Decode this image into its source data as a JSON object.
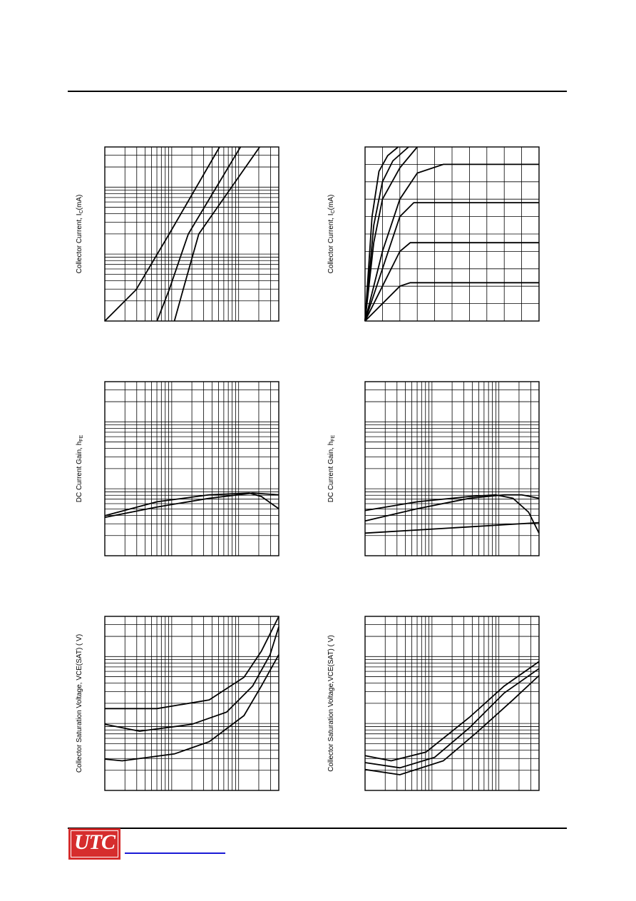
{
  "colors": {
    "logo_bg": "#d62d2d",
    "link": "#1a1ad6",
    "curve": "#000000",
    "grid": "#000000"
  },
  "logo": {
    "text": "UTC"
  },
  "chart_data": [
    {
      "type": "line",
      "ylabel": "Collector Current, I",
      "ylabel_sub": "C",
      "ylabel_tail": "(mA)",
      "grid": true,
      "series": [
        {
          "x": [
            0.0,
            0.18,
            0.37,
            0.66
          ],
          "y": [
            0.0,
            0.18,
            0.5,
            1.0
          ]
        },
        {
          "x": [
            0.3,
            0.37,
            0.48,
            0.78
          ],
          "y": [
            0.0,
            0.18,
            0.5,
            1.0
          ]
        },
        {
          "x": [
            0.4,
            0.45,
            0.54,
            0.89
          ],
          "y": [
            0.0,
            0.18,
            0.5,
            1.0
          ]
        }
      ]
    },
    {
      "type": "line",
      "ylabel": "Collector Current, I",
      "ylabel_sub": "C",
      "ylabel_tail": "(mA)",
      "grid": true,
      "series": [
        {
          "x": [
            0,
            0.1,
            0.2,
            0.26,
            1.0
          ],
          "y": [
            0,
            0.1,
            0.2,
            0.22,
            0.22
          ]
        },
        {
          "x": [
            0,
            0.1,
            0.2,
            0.26,
            1.0
          ],
          "y": [
            0,
            0.2,
            0.4,
            0.45,
            0.45
          ]
        },
        {
          "x": [
            0,
            0.1,
            0.2,
            0.28,
            1.0
          ],
          "y": [
            0,
            0.3,
            0.6,
            0.68,
            0.68
          ]
        },
        {
          "x": [
            0,
            0.1,
            0.2,
            0.3,
            0.45,
            1.0
          ],
          "y": [
            0,
            0.4,
            0.7,
            0.85,
            0.9,
            0.9
          ]
        },
        {
          "x": [
            0,
            0.05,
            0.1,
            0.2,
            0.3
          ],
          "y": [
            0,
            0.45,
            0.7,
            0.88,
            1.0
          ]
        },
        {
          "x": [
            0,
            0.05,
            0.1,
            0.16,
            0.25
          ],
          "y": [
            0,
            0.55,
            0.8,
            0.92,
            1.0
          ]
        },
        {
          "x": [
            0,
            0.04,
            0.08,
            0.13,
            0.19
          ],
          "y": [
            0,
            0.6,
            0.86,
            0.95,
            1.0
          ]
        }
      ]
    },
    {
      "type": "line",
      "ylabel": "DC Current Gain, h",
      "ylabel_sub": "FE",
      "ylabel_tail": "",
      "grid": true,
      "series": [
        {
          "x": [
            0.0,
            0.3,
            0.6,
            0.85,
            1.0
          ],
          "y": [
            0.22,
            0.28,
            0.33,
            0.36,
            0.35
          ]
        },
        {
          "x": [
            0.0,
            0.3,
            0.6,
            0.83,
            0.9,
            1.0
          ],
          "y": [
            0.23,
            0.31,
            0.35,
            0.36,
            0.34,
            0.27
          ]
        }
      ]
    },
    {
      "type": "line",
      "ylabel": "DC Current Gain, h",
      "ylabel_sub": "FE",
      "ylabel_tail": "",
      "grid": true,
      "series": [
        {
          "x": [
            0.0,
            0.3,
            0.6,
            0.75,
            0.85,
            0.94,
            1.0
          ],
          "y": [
            0.26,
            0.31,
            0.34,
            0.35,
            0.33,
            0.25,
            0.13
          ]
        },
        {
          "x": [
            0.0,
            0.3,
            0.6,
            0.8,
            0.9,
            1.0
          ],
          "y": [
            0.2,
            0.27,
            0.33,
            0.35,
            0.35,
            0.33
          ]
        },
        {
          "x": [
            0.0,
            0.5,
            1.0
          ],
          "y": [
            0.13,
            0.16,
            0.19
          ]
        }
      ]
    },
    {
      "type": "line",
      "ylabel": "Collector  Saturation Voltage, VCE(SAT) ( V)",
      "ylabel_sub": "",
      "ylabel_tail": "",
      "grid": true,
      "series": [
        {
          "x": [
            0.0,
            0.3,
            0.6,
            0.8,
            0.9,
            1.0
          ],
          "y": [
            0.47,
            0.47,
            0.52,
            0.65,
            0.8,
            1.0
          ]
        },
        {
          "x": [
            0.0,
            0.2,
            0.5,
            0.7,
            0.85,
            0.95,
            1.0
          ],
          "y": [
            0.38,
            0.34,
            0.38,
            0.45,
            0.6,
            0.78,
            0.94
          ]
        },
        {
          "x": [
            0.0,
            0.1,
            0.4,
            0.6,
            0.8,
            0.9,
            1.0
          ],
          "y": [
            0.18,
            0.17,
            0.21,
            0.28,
            0.43,
            0.6,
            0.78
          ]
        }
      ]
    },
    {
      "type": "line",
      "ylabel": "Collector  Saturation Voltage,VCE(SAT) ( V)",
      "ylabel_sub": "",
      "ylabel_tail": "",
      "grid": true,
      "series": [
        {
          "x": [
            0.0,
            0.15,
            0.35,
            0.6,
            0.8,
            1.0
          ],
          "y": [
            0.2,
            0.17,
            0.22,
            0.42,
            0.6,
            0.74
          ]
        },
        {
          "x": [
            0.0,
            0.2,
            0.4,
            0.6,
            0.8,
            1.0
          ],
          "y": [
            0.16,
            0.13,
            0.19,
            0.36,
            0.56,
            0.7
          ]
        },
        {
          "x": [
            0.0,
            0.2,
            0.45,
            0.65,
            0.85,
            1.0
          ],
          "y": [
            0.12,
            0.09,
            0.17,
            0.34,
            0.52,
            0.66
          ]
        }
      ]
    }
  ]
}
